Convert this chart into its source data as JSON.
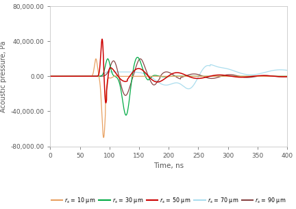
{
  "title": "",
  "xlabel": "Time, ns",
  "ylabel": "Acoustic pressure, Pa",
  "xlim": [
    0,
    400
  ],
  "ylim": [
    -80000,
    80000
  ],
  "xticks": [
    0,
    50,
    100,
    150,
    200,
    250,
    300,
    350,
    400
  ],
  "yticks": [
    -80000,
    -40000,
    0,
    40000,
    80000
  ],
  "series": [
    {
      "label": "r_s = 10 μm",
      "color": "#e8a060",
      "lw": 0.9
    },
    {
      "label": "r_s = 30 μm",
      "color": "#00aa44",
      "lw": 0.9
    },
    {
      "label": "r_s = 50 μm",
      "color": "#cc0000",
      "lw": 1.1
    },
    {
      "label": "r_s = 70 μm",
      "color": "#aaddee",
      "lw": 0.9
    },
    {
      "label": "r_s = 90 μm",
      "color": "#884444",
      "lw": 0.9
    }
  ],
  "background_color": "#ffffff"
}
